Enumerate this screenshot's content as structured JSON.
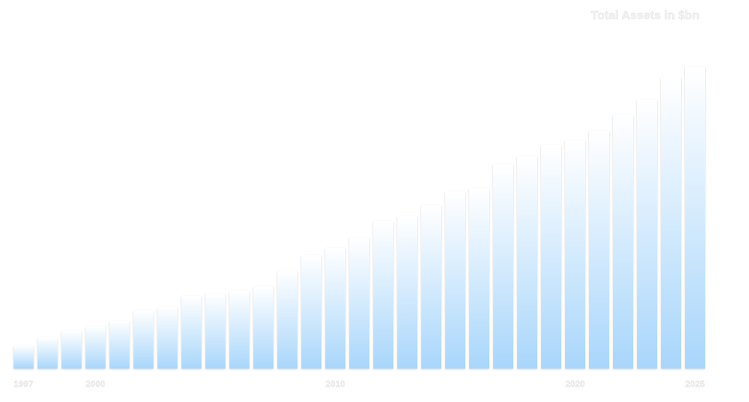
{
  "chart_data": {
    "type": "bar",
    "title": "Total Assets in $bn",
    "categories": [
      "1997",
      null,
      null,
      "2000",
      null,
      null,
      null,
      null,
      null,
      null,
      null,
      null,
      null,
      "2010",
      null,
      null,
      null,
      null,
      null,
      null,
      null,
      null,
      null,
      "2020",
      null,
      null,
      null,
      null,
      "2025"
    ],
    "values": [
      29,
      39,
      47,
      53,
      60,
      73,
      77,
      91,
      94,
      97,
      103,
      123,
      142,
      151,
      164,
      185,
      191,
      205,
      222,
      226,
      256,
      266,
      280,
      286,
      298,
      318,
      337,
      365,
      378
    ],
    "color": "#a9d6fb"
  }
}
